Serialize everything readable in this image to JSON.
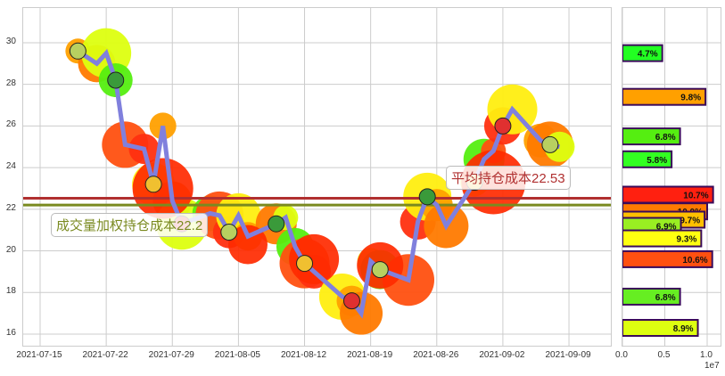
{
  "chart_data": [
    {
      "type": "line",
      "title": "",
      "xlabel": "",
      "ylabel": "",
      "ylim": [
        15.5,
        31.5
      ],
      "yticks": [
        "16",
        "18",
        "20",
        "22",
        "24",
        "26",
        "28",
        "30"
      ],
      "xticks": [
        "2021-07-15",
        "2021-07-22",
        "2021-07-29",
        "2021-08-05",
        "2021-08-12",
        "2021-08-19",
        "2021-08-26",
        "2021-09-02",
        "2021-09-09"
      ],
      "grid": true,
      "series": [
        {
          "name": "price",
          "color": "#8080dd",
          "x": [
            "2021-07-19",
            "2021-07-21",
            "2021-07-22",
            "2021-07-23",
            "2021-07-24",
            "2021-07-26",
            "2021-07-27",
            "2021-07-28",
            "2021-07-29",
            "2021-07-30",
            "2021-08-02",
            "2021-08-03",
            "2021-08-04",
            "2021-08-05",
            "2021-08-06",
            "2021-08-09",
            "2021-08-10",
            "2021-08-11",
            "2021-08-12",
            "2021-08-13",
            "2021-08-16",
            "2021-08-17",
            "2021-08-18",
            "2021-08-19",
            "2021-08-20",
            "2021-08-23",
            "2021-08-24",
            "2021-08-25",
            "2021-08-26",
            "2021-08-27",
            "2021-08-30",
            "2021-08-31",
            "2021-09-01",
            "2021-09-02",
            "2021-09-03",
            "2021-09-06",
            "2021-09-07",
            "2021-09-08"
          ],
          "values": [
            29.6,
            29.0,
            29.5,
            28.2,
            25.1,
            24.9,
            23.2,
            26.0,
            22.4,
            21.3,
            21.8,
            21.7,
            20.9,
            21.7,
            20.7,
            21.3,
            21.6,
            20.2,
            19.4,
            19.0,
            17.8,
            17.6,
            17.0,
            19.5,
            19.1,
            18.6,
            21.4,
            22.6,
            22.2,
            21.2,
            23.3,
            24.4,
            24.8,
            26.0,
            26.8,
            25.3,
            25.1,
            25.0
          ]
        }
      ],
      "reference_lines": [
        {
          "label": "平均持仓成本22.53",
          "value": 22.53,
          "color": "#b03030"
        },
        {
          "label": "成交量加权持仓成本22.2",
          "value": 22.2,
          "color": "#7a8a20"
        }
      ],
      "annotations": [
        "平均持仓成本22.53",
        "成交量加权持仓成本22.2"
      ]
    },
    {
      "type": "bar",
      "orientation": "horizontal",
      "xlabel": "",
      "xticks": [
        "0.0",
        "0.5",
        "1.0"
      ],
      "x_scale_note": "1e7",
      "categories_price_levels": [
        29.5,
        27.4,
        25.5,
        24.4,
        22.7,
        21.9,
        21.5,
        21.2,
        20.6,
        19.6,
        17.8,
        16.3
      ],
      "values": [
        0.47,
        0.98,
        0.68,
        0.58,
        1.07,
        1.0,
        0.97,
        0.69,
        0.93,
        1.06,
        0.68,
        0.89
      ],
      "labels": [
        "4.7%",
        "9.8%",
        "6.8%",
        "5.8%",
        "10.7%",
        "10.0%",
        "9.7%",
        "6.9%",
        "9.3%",
        "10.6%",
        "6.8%",
        "8.9%"
      ],
      "colors": [
        "#22ff22",
        "#ffa000",
        "#55ee11",
        "#33ff22",
        "#ff2010",
        "#ff7a00",
        "#ffc000",
        "#99ee22",
        "#ffff10",
        "#ff5010",
        "#66ee22",
        "#ddff10"
      ]
    }
  ],
  "main_chart": {
    "avg_cost_label": "平均持仓成本22.53",
    "vw_cost_label": "成交量加权持仓成本22.2",
    "avg_cost_color": "#b03030",
    "vw_cost_color": "#7a8a20",
    "line_color": "#8080dd"
  },
  "bar_chart": {
    "scale_label": "1e7",
    "border_color": "#3a0a5a"
  }
}
